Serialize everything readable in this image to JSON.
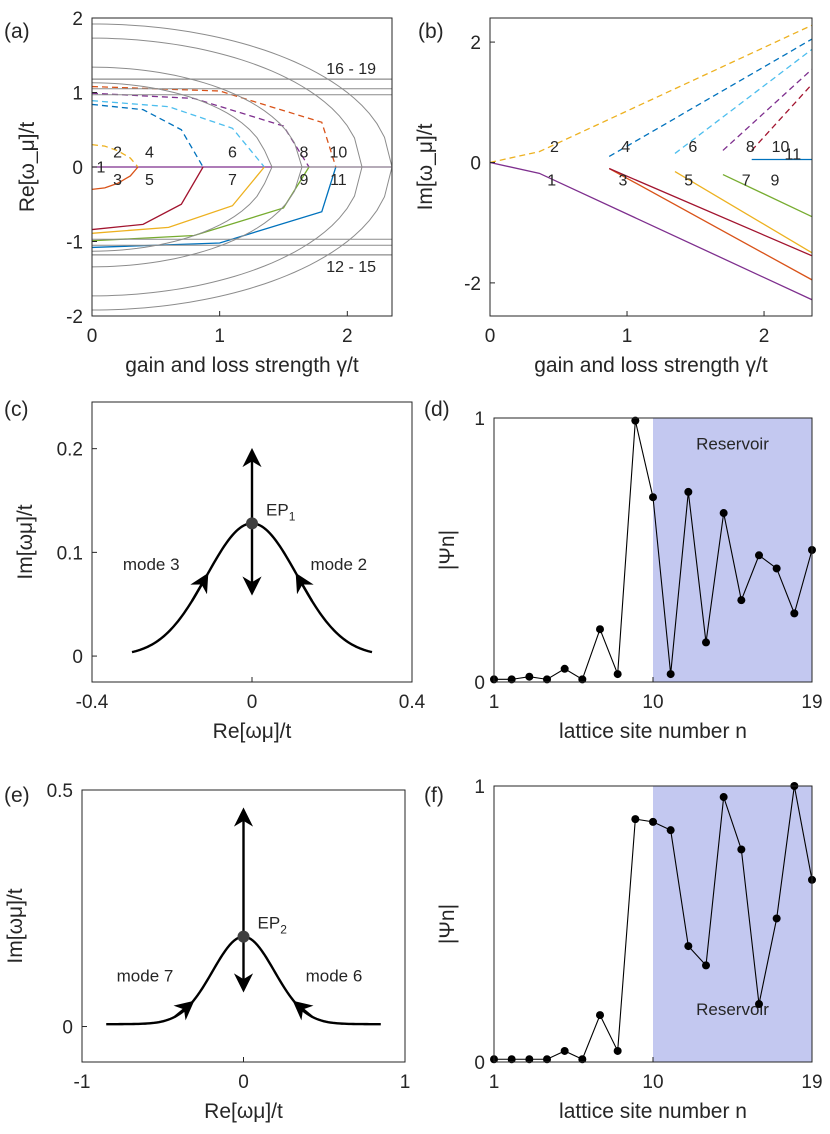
{
  "panels": [
    {
      "id": "a",
      "tag": "(a)",
      "kind": "spectrum",
      "xlabel": "gain and loss strength γ/t",
      "ylabel": "Re[ω_μ]/t",
      "xlim": [
        0,
        2.35
      ],
      "ylim": [
        -2,
        2
      ],
      "xticks": [
        0,
        1,
        2
      ],
      "yticks": [
        -2,
        -1,
        0,
        1,
        2
      ],
      "labels": [
        {
          "text": "1",
          "x": 0.07,
          "y": 0.01
        },
        {
          "text": "2",
          "x": 0.2,
          "y": 0.21
        },
        {
          "text": "3",
          "x": 0.2,
          "y": -0.16
        },
        {
          "text": "4",
          "x": 0.45,
          "y": 0.21
        },
        {
          "text": "5",
          "x": 0.45,
          "y": -0.16
        },
        {
          "text": "6",
          "x": 1.1,
          "y": 0.21
        },
        {
          "text": "7",
          "x": 1.1,
          "y": -0.16
        },
        {
          "text": "8",
          "x": 1.66,
          "y": 0.21
        },
        {
          "text": "9",
          "x": 1.66,
          "y": -0.16
        },
        {
          "text": "10",
          "x": 1.93,
          "y": 0.21
        },
        {
          "text": "11",
          "x": 1.93,
          "y": -0.16
        },
        {
          "text": "16 - 19",
          "x": 2.03,
          "y": 1.33
        },
        {
          "text": "12 - 15",
          "x": 2.03,
          "y": -1.33
        }
      ]
    },
    {
      "id": "b",
      "tag": "(b)",
      "kind": "spectrum",
      "xlabel": "gain and loss strength γ/t",
      "ylabel": "Im[ω_μ]/t",
      "xlim": [
        0,
        2.35
      ],
      "ylim": [
        -2.55,
        2.4
      ],
      "xticks": [
        0,
        1,
        2
      ],
      "yticks": [
        -2,
        0,
        2
      ],
      "labels": [
        {
          "text": "1",
          "x": 0.45,
          "y": -0.28
        },
        {
          "text": "2",
          "x": 0.47,
          "y": 0.27
        },
        {
          "text": "3",
          "x": 0.97,
          "y": -0.28
        },
        {
          "text": "4",
          "x": 0.99,
          "y": 0.27
        },
        {
          "text": "5",
          "x": 1.45,
          "y": -0.28
        },
        {
          "text": "6",
          "x": 1.48,
          "y": 0.27
        },
        {
          "text": "7",
          "x": 1.87,
          "y": -0.28
        },
        {
          "text": "8",
          "x": 1.9,
          "y": 0.27
        },
        {
          "text": "9",
          "x": 2.08,
          "y": -0.28
        },
        {
          "text": "10",
          "x": 2.12,
          "y": 0.27
        },
        {
          "text": "11",
          "x": 2.21,
          "y": 0.15
        }
      ]
    },
    {
      "id": "c",
      "tag": "(c)",
      "kind": "trajectory",
      "xlabel": "Re[ωμ]/t",
      "ylabel": "Im[ωμ]/t",
      "xlim": [
        -0.4,
        0.4
      ],
      "ylim": [
        -0.025,
        0.245
      ],
      "xticks": [
        -0.4,
        0,
        0.4
      ],
      "yticks": [
        0,
        0.1,
        0.2
      ],
      "ep_label": "EP",
      "ep_sub": "1",
      "ep": [
        0,
        0.128
      ],
      "peak": 0.128,
      "edge": 0.3,
      "decay": 0.16,
      "tail": 0,
      "arrow_up": 0.197,
      "arrow_down": 0.062,
      "modes": [
        {
          "text": "mode 3",
          "x": -0.252,
          "y": 0.083
        },
        {
          "text": "mode 2",
          "x": 0.217,
          "y": 0.083
        }
      ]
    },
    {
      "id": "d",
      "tag": "(d)",
      "kind": "profile",
      "xlabel": "lattice site number n",
      "ylabel": "|Ψn|",
      "xlim": [
        1,
        19
      ],
      "ylim": [
        0,
        1
      ],
      "xticks": [
        1,
        10,
        19
      ],
      "yticks": [
        0,
        1
      ],
      "reservoir": "Reservoir",
      "reservoir_from": 10,
      "reservoir_label_y": 0.88,
      "n": [
        1,
        2,
        3,
        4,
        5,
        6,
        7,
        8,
        9,
        10,
        11,
        12,
        13,
        14,
        15,
        16,
        17,
        18,
        19
      ],
      "values": [
        0.01,
        0.01,
        0.02,
        0.01,
        0.05,
        0.01,
        0.2,
        0.03,
        0.99,
        0.7,
        0.03,
        0.72,
        0.15,
        0.64,
        0.31,
        0.48,
        0.43,
        0.26,
        0.5
      ]
    },
    {
      "id": "e",
      "tag": "(e)",
      "kind": "trajectory",
      "xlabel": "Re[ωμ]/t",
      "ylabel": "Im[ωμ]/t",
      "xlim": [
        -1,
        1
      ],
      "ylim": [
        -0.075,
        0.5
      ],
      "xticks": [
        -1,
        0,
        1
      ],
      "yticks": [
        0,
        0.5
      ],
      "ep_label": "EP",
      "ep_sub": "2",
      "ep": [
        0,
        0.19
      ],
      "peak": 0.19,
      "edge": 0.85,
      "decay": 0.27,
      "tail": 0.005,
      "arrow_up": 0.455,
      "arrow_down": 0.08,
      "modes": [
        {
          "text": "mode 7",
          "x": -0.61,
          "y": 0.095
        },
        {
          "text": "mode 6",
          "x": 0.56,
          "y": 0.095
        }
      ]
    },
    {
      "id": "f",
      "tag": "(f)",
      "kind": "profile",
      "xlabel": "lattice site number n",
      "ylabel": "|Ψn|",
      "xlim": [
        1,
        19
      ],
      "ylim": [
        0,
        1
      ],
      "xticks": [
        1,
        10,
        19
      ],
      "yticks": [
        0,
        1
      ],
      "reservoir": "Reservoir",
      "reservoir_from": 10,
      "reservoir_label_y": 0.17,
      "n": [
        1,
        2,
        3,
        4,
        5,
        6,
        7,
        8,
        9,
        10,
        11,
        12,
        13,
        14,
        15,
        16,
        17,
        18,
        19
      ],
      "values": [
        0.01,
        0.01,
        0.01,
        0.01,
        0.04,
        0.01,
        0.17,
        0.04,
        0.88,
        0.87,
        0.84,
        0.42,
        0.35,
        0.96,
        0.77,
        0.21,
        0.52,
        1.0,
        0.66
      ]
    }
  ],
  "chart_data": [
    {
      "type": "line",
      "title": "",
      "xlabel": "gain and loss strength γ/t",
      "ylabel": "Re[ω_μ]/t",
      "xlim": [
        0,
        2.35
      ],
      "ylim": [
        -2,
        2
      ],
      "series": [
        {
          "color": "#7e2f8e",
          "x": [
            0,
            2.35
          ],
          "y": [
            0,
            0
          ]
        },
        {
          "color": "#edb120",
          "x": [
            0,
            0.1,
            0.2,
            0.3,
            0.36
          ],
          "y": [
            0.3,
            0.28,
            0.22,
            0.12,
            0
          ]
        },
        {
          "color": "#d95319",
          "x": [
            0,
            0.1,
            0.2,
            0.3,
            0.36
          ],
          "y": [
            -0.3,
            -0.28,
            -0.22,
            -0.12,
            0
          ]
        },
        {
          "color": "#0072bd",
          "x": [
            0,
            0.4,
            0.7,
            0.87
          ],
          "y": [
            0.84,
            0.77,
            0.5,
            0
          ]
        },
        {
          "color": "#a2142f",
          "x": [
            0,
            0.4,
            0.7,
            0.87
          ],
          "y": [
            -0.84,
            -0.77,
            -0.5,
            0
          ]
        },
        {
          "color": "#4dbeee",
          "x": [
            0,
            0.6,
            1.1,
            1.35
          ],
          "y": [
            0.89,
            0.81,
            0.52,
            0
          ]
        },
        {
          "color": "#edb120",
          "x": [
            0,
            0.6,
            1.1,
            1.35
          ],
          "y": [
            -0.89,
            -0.81,
            -0.52,
            0
          ]
        },
        {
          "color": "#7e2f8e",
          "x": [
            0,
            0.8,
            1.5,
            1.7
          ],
          "y": [
            0.99,
            0.92,
            0.55,
            0
          ]
        },
        {
          "color": "#77ac30",
          "x": [
            0,
            0.8,
            1.5,
            1.7
          ],
          "y": [
            -0.99,
            -0.92,
            -0.55,
            0
          ]
        },
        {
          "color": "#d95319",
          "x": [
            0,
            1.0,
            1.8,
            1.91
          ],
          "y": [
            1.08,
            1.02,
            0.6,
            0
          ]
        },
        {
          "color": "#0072bd",
          "x": [
            0,
            1.0,
            1.8,
            1.91
          ],
          "y": [
            -1.08,
            -1.02,
            -0.6,
            0
          ]
        },
        {
          "color": "#8c8c8c",
          "x": [
            0,
            2.35
          ],
          "y": [
            1.18,
            1.18
          ]
        },
        {
          "color": "#8c8c8c",
          "x": [
            0,
            2.35
          ],
          "y": [
            -1.18,
            -1.18
          ]
        }
      ]
    },
    {
      "type": "line",
      "title": "",
      "xlabel": "gain and loss strength γ/t",
      "ylabel": "Im[ω_μ]/t",
      "xlim": [
        0,
        2.35
      ],
      "ylim": [
        -2.55,
        2.4
      ],
      "series": [
        {
          "color": "#7e2f8e",
          "x": [
            0,
            0.36,
            2.35
          ],
          "y": [
            0,
            -0.18,
            -2.28
          ]
        },
        {
          "color": "#edb120",
          "x": [
            0,
            0.36,
            2.35
          ],
          "y": [
            0,
            0.18,
            2.28
          ]
        },
        {
          "color": "#d95319",
          "x": [
            0.87,
            2.35
          ],
          "y": [
            -0.1,
            -1.95
          ]
        },
        {
          "color": "#0072bd",
          "x": [
            0.87,
            2.35
          ],
          "y": [
            0.1,
            2.05
          ]
        },
        {
          "color": "#a2142f",
          "x": [
            0.87,
            2.35
          ],
          "y": [
            -0.1,
            -1.55
          ]
        },
        {
          "color": "#4dbeee",
          "x": [
            1.35,
            2.35
          ],
          "y": [
            0.15,
            1.88
          ]
        },
        {
          "color": "#edb120",
          "x": [
            1.35,
            2.35
          ],
          "y": [
            -0.15,
            -1.5
          ]
        },
        {
          "color": "#7e2f8e",
          "x": [
            1.7,
            2.35
          ],
          "y": [
            0.2,
            1.55
          ]
        },
        {
          "color": "#77ac30",
          "x": [
            1.7,
            2.35
          ],
          "y": [
            -0.2,
            -0.9
          ]
        },
        {
          "color": "#a2142f",
          "x": [
            1.91,
            2.35
          ],
          "y": [
            0.2,
            1.3
          ]
        },
        {
          "color": "#0072bd",
          "x": [
            1.91,
            2.35
          ],
          "y": [
            0.05,
            0.05
          ]
        }
      ]
    },
    {
      "type": "line",
      "title": "",
      "xlabel": "Re[ωμ]/t",
      "ylabel": "Im[ωμ]/t",
      "xlim": [
        -0.4,
        0.4
      ],
      "ylim": [
        -0.025,
        0.245
      ],
      "series": [
        {
          "name": "mode 3"
        },
        {
          "name": "mode 2"
        }
      ],
      "points": [
        {
          "label": "EP1",
          "x": 0,
          "y": 0.128
        }
      ]
    },
    {
      "type": "line",
      "title": "",
      "xlabel": "lattice site number n",
      "ylabel": "|Ψn|",
      "xlim": [
        1,
        19
      ],
      "ylim": [
        0,
        1
      ],
      "x": [
        1,
        2,
        3,
        4,
        5,
        6,
        7,
        8,
        9,
        10,
        11,
        12,
        13,
        14,
        15,
        16,
        17,
        18,
        19
      ],
      "series": [
        {
          "values": [
            0.01,
            0.01,
            0.02,
            0.01,
            0.05,
            0.01,
            0.2,
            0.03,
            0.99,
            0.7,
            0.03,
            0.72,
            0.15,
            0.64,
            0.31,
            0.48,
            0.43,
            0.26,
            0.5
          ]
        }
      ],
      "annotations": [
        "Reservoir"
      ]
    },
    {
      "type": "line",
      "title": "",
      "xlabel": "Re[ωμ]/t",
      "ylabel": "Im[ωμ]/t",
      "xlim": [
        -1,
        1
      ],
      "ylim": [
        -0.075,
        0.5
      ],
      "series": [
        {
          "name": "mode 7"
        },
        {
          "name": "mode 6"
        }
      ],
      "points": [
        {
          "label": "EP2",
          "x": 0,
          "y": 0.19
        }
      ]
    },
    {
      "type": "line",
      "title": "",
      "xlabel": "lattice site number n",
      "ylabel": "|Ψn|",
      "xlim": [
        1,
        19
      ],
      "ylim": [
        0,
        1
      ],
      "x": [
        1,
        2,
        3,
        4,
        5,
        6,
        7,
        8,
        9,
        10,
        11,
        12,
        13,
        14,
        15,
        16,
        17,
        18,
        19
      ],
      "series": [
        {
          "values": [
            0.01,
            0.01,
            0.01,
            0.01,
            0.04,
            0.01,
            0.17,
            0.04,
            0.88,
            0.87,
            0.84,
            0.42,
            0.35,
            0.96,
            0.77,
            0.21,
            0.52,
            1.0,
            0.66
          ]
        }
      ],
      "annotations": [
        "Reservoir"
      ]
    }
  ]
}
